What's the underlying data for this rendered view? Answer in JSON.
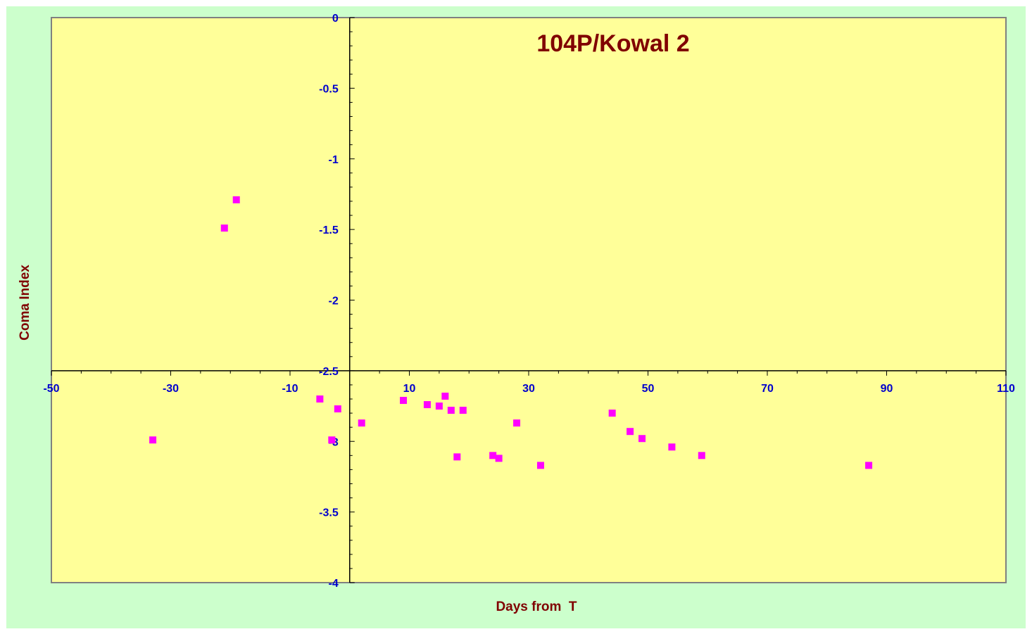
{
  "chart_data": {
    "type": "scatter",
    "title": "104P/Kowal 2",
    "xlabel": "Days from  T",
    "ylabel": "Coma Index",
    "xlim": [
      -50,
      110
    ],
    "ylim": [
      -4,
      0
    ],
    "x_ticks": [
      -50,
      -30,
      -10,
      10,
      30,
      50,
      70,
      90,
      110
    ],
    "y_ticks": [
      0,
      -0.5,
      -1,
      -1.5,
      -2,
      -2.5,
      -3,
      -3.5,
      -4
    ],
    "x_tick_labels": [
      "-50",
      "-30",
      "-10",
      "10",
      "30",
      "50",
      "70",
      "90",
      "110"
    ],
    "y_tick_labels": [
      "0",
      "-0.5",
      "-1",
      "-1.5",
      "-2",
      "-2.5",
      "-3",
      "-3.5",
      "-4"
    ],
    "x_axis_crosses_y_at": -2.5,
    "y_axis_crosses_x_at": 0,
    "grid": false,
    "legend": "none",
    "colors": {
      "outer_background": "#ccffcc",
      "plot_background": "#ffff99",
      "marker": "#ff00ff",
      "tick_labels": "#0000cc",
      "title": "#800000",
      "axis_titles": "#800000"
    },
    "series": [
      {
        "marker": "square",
        "points": [
          [
            -33,
            -2.99
          ],
          [
            -21,
            -1.49
          ],
          [
            -19,
            -1.29
          ],
          [
            -5,
            -2.7
          ],
          [
            -3,
            -2.99
          ],
          [
            -2,
            -2.77
          ],
          [
            2,
            -2.87
          ],
          [
            9,
            -2.71
          ],
          [
            13,
            -2.74
          ],
          [
            15,
            -2.75
          ],
          [
            16,
            -2.68
          ],
          [
            17,
            -2.78
          ],
          [
            18,
            -3.11
          ],
          [
            19,
            -2.78
          ],
          [
            24,
            -3.1
          ],
          [
            25,
            -3.12
          ],
          [
            28,
            -2.87
          ],
          [
            32,
            -3.17
          ],
          [
            44,
            -2.8
          ],
          [
            47,
            -2.93
          ],
          [
            49,
            -2.98
          ],
          [
            54,
            -3.04
          ],
          [
            59,
            -3.1
          ],
          [
            87,
            -3.17
          ]
        ]
      }
    ]
  }
}
